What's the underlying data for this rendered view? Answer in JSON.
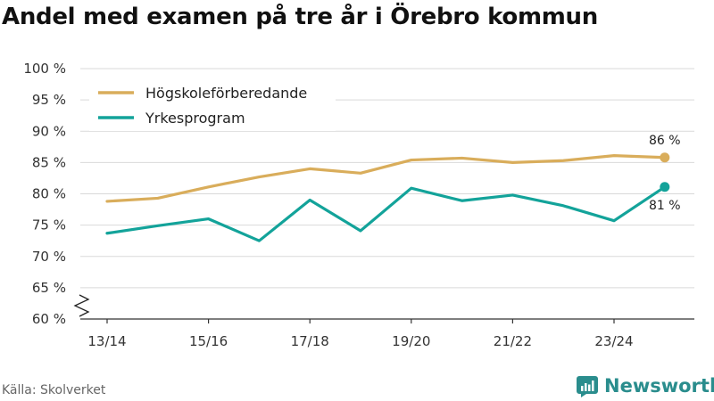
{
  "title": "Andel med examen på tre år i Örebro kommun",
  "source": "Källa: Skolverket",
  "brand": {
    "name": "Newsworthy",
    "icon": "newsworthy-logo-icon"
  },
  "colors": {
    "series1": "#d9ad5b",
    "series2": "#13a39a",
    "grid": "#d9d9d9",
    "axis": "#333333"
  },
  "chart_data": {
    "type": "line",
    "title": "Andel med examen på tre år i Örebro kommun",
    "xlabel": "",
    "ylabel": "",
    "x": [
      "13/14",
      "14/15",
      "15/16",
      "16/17",
      "17/18",
      "18/19",
      "19/20",
      "20/21",
      "21/22",
      "22/23",
      "23/24",
      "24/25"
    ],
    "xticks": [
      "13/14",
      "15/16",
      "17/18",
      "19/20",
      "21/22",
      "23/24"
    ],
    "ylim": [
      60,
      100
    ],
    "yticks": [
      60,
      65,
      70,
      75,
      80,
      85,
      90,
      95,
      100
    ],
    "ytick_labels": [
      "60 %",
      "65 %",
      "70 %",
      "75 %",
      "80 %",
      "85 %",
      "90 %",
      "95 %",
      "100 %"
    ],
    "grid": true,
    "legend": "top-left",
    "series": [
      {
        "name": "Högskoleförberedande",
        "values": [
          78.8,
          79.3,
          81.1,
          82.7,
          84.0,
          83.3,
          85.4,
          85.7,
          85.0,
          85.3,
          86.1,
          85.8
        ],
        "end_label": "86 %"
      },
      {
        "name": "Yrkesprogram",
        "values": [
          73.7,
          74.9,
          76.0,
          72.5,
          79.0,
          74.1,
          80.9,
          78.9,
          79.8,
          78.1,
          75.7,
          81.1
        ],
        "end_label": "81 %"
      }
    ]
  }
}
